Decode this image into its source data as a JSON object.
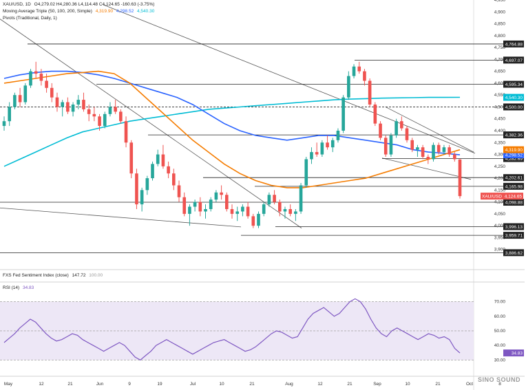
{
  "header": {
    "symbol": "XAU/USD, 1D",
    "ohlc": "O4,279.02  H4,280.36  L4,114.48  C4,124.65  -160.63 (-3.75%)",
    "ma_title": "Moving Average Triple (50, 100, 200, Simple)",
    "ma50": "4,319.90",
    "ma100": "4,298.52",
    "ma200": "4,540.30",
    "pivots_title": "Pivots (Traditional, Daily, 1)"
  },
  "fed_panel": {
    "title": "FXS Fed Sentiment Index (close)",
    "value": "147.72",
    "scale": "100.00"
  },
  "rsi_panel": {
    "title": "RSI (14)",
    "value": "34.83"
  },
  "watermark": "SINO SOUND",
  "colors": {
    "up": "#26a69a",
    "down": "#ef5350",
    "ma50": "#f57c00",
    "ma100": "#2962ff",
    "ma200": "#00bcd4",
    "rsi": "#7e57c2",
    "rsi_band": "#ede7f6"
  },
  "chart_data": [
    {
      "type": "candlestick",
      "title": "XAU/USD, 1D",
      "ylim": [
        3850,
        4950
      ],
      "y_ticks": [
        4950,
        4900,
        4850,
        4800,
        4750,
        4700,
        4650,
        4600,
        4550,
        4500,
        4450,
        4400,
        4350,
        4300,
        4250,
        4200,
        4150,
        4100,
        4050,
        4000,
        3950,
        3900
      ],
      "x_ticks": [
        "May",
        "12",
        "21",
        "Jun",
        "9",
        "19",
        "Jul",
        "10",
        "21",
        "Aug",
        "12",
        "21",
        "Sep",
        "10",
        "21",
        "Oct",
        "8"
      ],
      "candles": [
        [
          4420,
          4460,
          4400,
          4440
        ],
        [
          4440,
          4520,
          4420,
          4500
        ],
        [
          4500,
          4560,
          4490,
          4550
        ],
        [
          4550,
          4580,
          4500,
          4520
        ],
        [
          4520,
          4600,
          4510,
          4590
        ],
        [
          4590,
          4660,
          4580,
          4650
        ],
        [
          4650,
          4690,
          4620,
          4640
        ],
        [
          4640,
          4660,
          4590,
          4610
        ],
        [
          4610,
          4640,
          4560,
          4580
        ],
        [
          4580,
          4600,
          4520,
          4540
        ],
        [
          4540,
          4560,
          4480,
          4500
        ],
        [
          4500,
          4530,
          4460,
          4520
        ],
        [
          4520,
          4540,
          4470,
          4480
        ],
        [
          4480,
          4520,
          4460,
          4510
        ],
        [
          4510,
          4550,
          4490,
          4530
        ],
        [
          4530,
          4560,
          4480,
          4490
        ],
        [
          4490,
          4510,
          4440,
          4470
        ],
        [
          4470,
          4500,
          4440,
          4460
        ],
        [
          4460,
          4470,
          4400,
          4420
        ],
        [
          4420,
          4480,
          4410,
          4470
        ],
        [
          4470,
          4520,
          4460,
          4500
        ],
        [
          4500,
          4530,
          4470,
          4480
        ],
        [
          4480,
          4490,
          4430,
          4440
        ],
        [
          4440,
          4460,
          4330,
          4350
        ],
        [
          4350,
          4360,
          4200,
          4220
        ],
        [
          4220,
          4240,
          4070,
          4090
        ],
        [
          4090,
          4160,
          4060,
          4150
        ],
        [
          4150,
          4210,
          4130,
          4200
        ],
        [
          4200,
          4270,
          4190,
          4260
        ],
        [
          4260,
          4320,
          4250,
          4300
        ],
        [
          4300,
          4340,
          4240,
          4250
        ],
        [
          4250,
          4270,
          4200,
          4220
        ],
        [
          4220,
          4240,
          4150,
          4170
        ],
        [
          4170,
          4190,
          4100,
          4120
        ],
        [
          4120,
          4140,
          4040,
          4050
        ],
        [
          4050,
          4090,
          4000,
          4080
        ],
        [
          4080,
          4110,
          4060,
          4100
        ],
        [
          4100,
          4120,
          4040,
          4060
        ],
        [
          4060,
          4090,
          4030,
          4070
        ],
        [
          4070,
          4120,
          4060,
          4110
        ],
        [
          4110,
          4150,
          4100,
          4140
        ],
        [
          4140,
          4170,
          4110,
          4130
        ],
        [
          4130,
          4140,
          4060,
          4070
        ],
        [
          4070,
          4090,
          4030,
          4050
        ],
        [
          4050,
          4080,
          4020,
          4060
        ],
        [
          4060,
          4090,
          4040,
          4080
        ],
        [
          4080,
          4100,
          4030,
          4040
        ],
        [
          4040,
          4050,
          3990,
          4000
        ],
        [
          4000,
          4060,
          3990,
          4050
        ],
        [
          4050,
          4100,
          4040,
          4090
        ],
        [
          4090,
          4140,
          4080,
          4130
        ],
        [
          4130,
          4150,
          4090,
          4100
        ],
        [
          4100,
          4110,
          4040,
          4060
        ],
        [
          4060,
          4080,
          4030,
          4070
        ],
        [
          4070,
          4090,
          4040,
          4050
        ],
        [
          4050,
          4070,
          4020,
          4060
        ],
        [
          4060,
          4180,
          4050,
          4170
        ],
        [
          4170,
          4290,
          4160,
          4280
        ],
        [
          4280,
          4330,
          4260,
          4310
        ],
        [
          4310,
          4350,
          4290,
          4300
        ],
        [
          4300,
          4360,
          4290,
          4350
        ],
        [
          4350,
          4380,
          4320,
          4330
        ],
        [
          4330,
          4370,
          4310,
          4360
        ],
        [
          4360,
          4410,
          4350,
          4400
        ],
        [
          4400,
          4550,
          4390,
          4540
        ],
        [
          4540,
          4650,
          4530,
          4630
        ],
        [
          4630,
          4680,
          4620,
          4670
        ],
        [
          4670,
          4690,
          4640,
          4650
        ],
        [
          4650,
          4660,
          4590,
          4610
        ],
        [
          4610,
          4620,
          4500,
          4510
        ],
        [
          4510,
          4520,
          4420,
          4430
        ],
        [
          4430,
          4440,
          4360,
          4370
        ],
        [
          4370,
          4380,
          4290,
          4300
        ],
        [
          4300,
          4390,
          4290,
          4380
        ],
        [
          4380,
          4450,
          4370,
          4440
        ],
        [
          4440,
          4460,
          4400,
          4410
        ],
        [
          4410,
          4420,
          4350,
          4360
        ],
        [
          4360,
          4370,
          4310,
          4320
        ],
        [
          4320,
          4340,
          4290,
          4330
        ],
        [
          4330,
          4340,
          4280,
          4290
        ],
        [
          4290,
          4300,
          4260,
          4280
        ],
        [
          4280,
          4350,
          4270,
          4340
        ],
        [
          4340,
          4350,
          4300,
          4310
        ],
        [
          4310,
          4340,
          4300,
          4330
        ],
        [
          4330,
          4340,
          4290,
          4300
        ],
        [
          4300,
          4310,
          4270,
          4280
        ],
        [
          4279.02,
          4280.36,
          4114.48,
          4124.65
        ]
      ],
      "ma50": [
        4600,
        4610,
        4620,
        4630,
        4640,
        4645,
        4650,
        4640,
        4600,
        4540,
        4480,
        4420,
        4360,
        4310,
        4260,
        4220,
        4190,
        4170,
        4160,
        4160,
        4170,
        4180,
        4190,
        4200,
        4220,
        4240,
        4260,
        4280,
        4300,
        4319.9
      ],
      "ma100": [
        4620,
        4635,
        4645,
        4650,
        4650,
        4645,
        4635,
        4620,
        4600,
        4580,
        4560,
        4540,
        4510,
        4470,
        4430,
        4400,
        4380,
        4370,
        4360,
        4370,
        4380,
        4380,
        4370,
        4360,
        4350,
        4340,
        4320,
        4310,
        4305,
        4298.52
      ],
      "ma200": [
        4250,
        4280,
        4310,
        4340,
        4370,
        4395,
        4410,
        4425,
        4440,
        4450,
        4460,
        4470,
        4480,
        4490,
        4495,
        4500,
        4505,
        4510,
        4515,
        4520,
        4525,
        4530,
        4533,
        4535,
        4537,
        4538,
        4539,
        4540,
        4540,
        4540.3
      ],
      "levels": [
        "4,764.88",
        "4,697.07",
        "4,595.34",
        "4,500.00",
        "4,382.36",
        "4,282.69",
        "4,202.61",
        "4,165.98",
        "4,098.88",
        "3,996.13",
        "3,959.71",
        "3,886.62"
      ],
      "level_values": [
        4764.88,
        4697.07,
        4595.34,
        4500,
        4382.36,
        4282.69,
        4202.61,
        4165.98,
        4098.88,
        3996.13,
        3959.71,
        3886.62
      ],
      "last_price_label": "XAU/USD",
      "last_price": "4,124.65"
    },
    {
      "type": "line",
      "title": "RSI (14)",
      "ylim": [
        25,
        75
      ],
      "y_ticks": [
        70,
        60,
        50,
        40,
        30
      ],
      "band": [
        30,
        70
      ],
      "values": [
        42,
        45,
        48,
        52,
        55,
        58,
        56,
        52,
        48,
        45,
        43,
        44,
        46,
        48,
        47,
        44,
        42,
        40,
        38,
        36,
        38,
        40,
        42,
        40,
        36,
        32,
        30,
        33,
        36,
        40,
        42,
        44,
        42,
        40,
        38,
        36,
        34,
        36,
        38,
        40,
        42,
        43,
        44,
        42,
        40,
        38,
        36,
        37,
        39,
        42,
        45,
        48,
        50,
        49,
        47,
        45,
        46,
        52,
        58,
        62,
        64,
        66,
        63,
        60,
        62,
        66,
        70,
        72,
        70,
        65,
        58,
        52,
        48,
        46,
        50,
        52,
        50,
        48,
        46,
        44,
        46,
        48,
        47,
        45,
        46,
        44,
        38,
        34.83
      ]
    }
  ]
}
